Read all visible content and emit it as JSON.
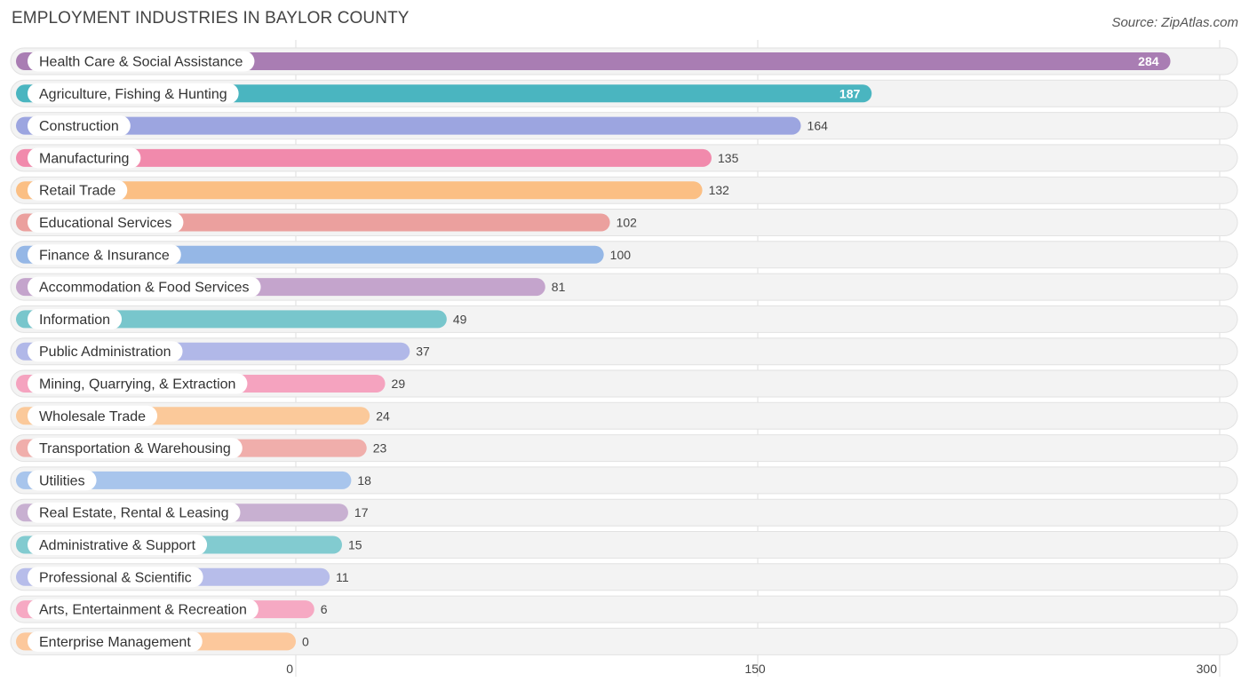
{
  "chart_data": {
    "type": "bar",
    "orientation": "horizontal",
    "title": "EMPLOYMENT INDUSTRIES IN BAYLOR COUNTY",
    "source": "Source: ZipAtlas.com",
    "xlim": [
      0,
      300
    ],
    "ticks": [
      0,
      150,
      300
    ],
    "categories": [
      "Health Care & Social Assistance",
      "Agriculture, Fishing & Hunting",
      "Construction",
      "Manufacturing",
      "Retail Trade",
      "Educational Services",
      "Finance & Insurance",
      "Accommodation & Food Services",
      "Information",
      "Public Administration",
      "Mining, Quarrying, & Extraction",
      "Wholesale Trade",
      "Transportation & Warehousing",
      "Utilities",
      "Real Estate, Rental & Leasing",
      "Administrative & Support",
      "Professional & Scientific",
      "Arts, Entertainment & Recreation",
      "Enterprise Management"
    ],
    "values": [
      284,
      187,
      164,
      135,
      132,
      102,
      100,
      81,
      49,
      37,
      29,
      24,
      23,
      18,
      17,
      15,
      11,
      6,
      0
    ],
    "colors": [
      "#a97db3",
      "#4ab5c0",
      "#9ca5e0",
      "#f18aac",
      "#fbbf84",
      "#eba09e",
      "#95b7e6",
      "#c4a4cc",
      "#78c6cc",
      "#b1b8e8",
      "#f5a3bf",
      "#fbc99a",
      "#f0aeab",
      "#a8c5ec",
      "#c8b0d1",
      "#82cbd0",
      "#b7bdea",
      "#f6a9c3",
      "#fcc89c"
    ]
  }
}
